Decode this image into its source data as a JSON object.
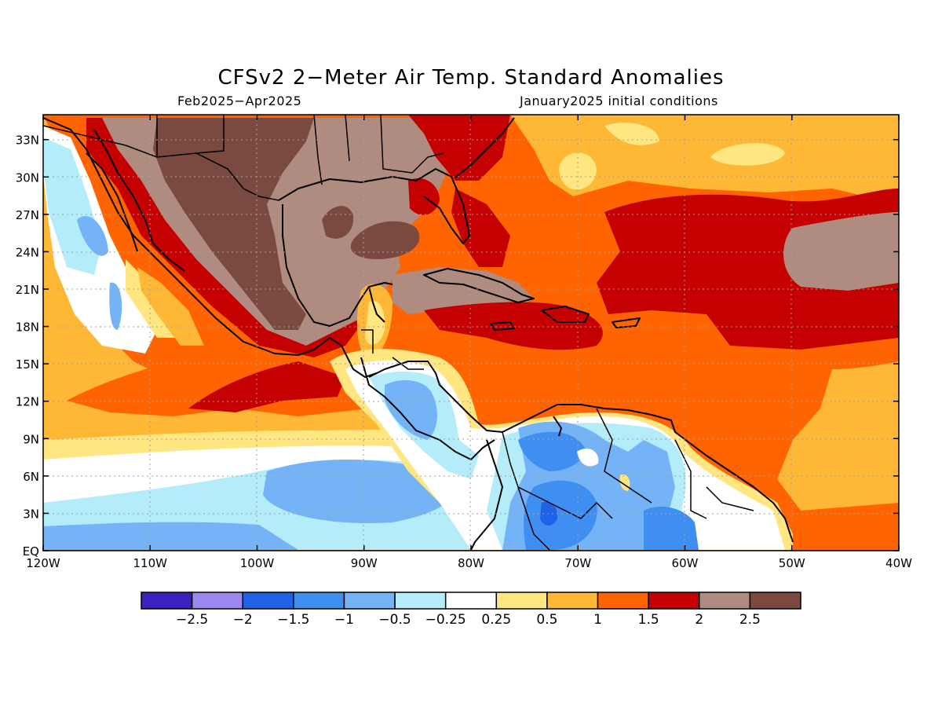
{
  "title": "CFSv2 2−Meter Air Temp. Standard Anomalies",
  "period": "Feb2025−Apr2025",
  "initial_conditions": "January2025 initial conditions",
  "lon_labels": [
    "120W",
    "110W",
    "100W",
    "90W",
    "80W",
    "70W",
    "60W",
    "50W",
    "40W"
  ],
  "lat_labels": [
    "EQ",
    "3N",
    "6N",
    "9N",
    "12N",
    "15N",
    "18N",
    "21N",
    "24N",
    "27N",
    "30N",
    "33N"
  ],
  "colorbar": {
    "labels": [
      "−2.5",
      "−2",
      "−1.5",
      "−1",
      "−0.5",
      "−0.25",
      "0.25",
      "0.5",
      "1",
      "1.5",
      "2",
      "2.5"
    ],
    "colors": [
      "#3a21c0",
      "#9b86f2",
      "#1f62e6",
      "#3f8ff2",
      "#74b4f6",
      "#b4ecfa",
      "#ffffff",
      "#ffe680",
      "#ffb836",
      "#ff6400",
      "#c40000",
      "#b08c80",
      "#7a4a40"
    ]
  }
}
